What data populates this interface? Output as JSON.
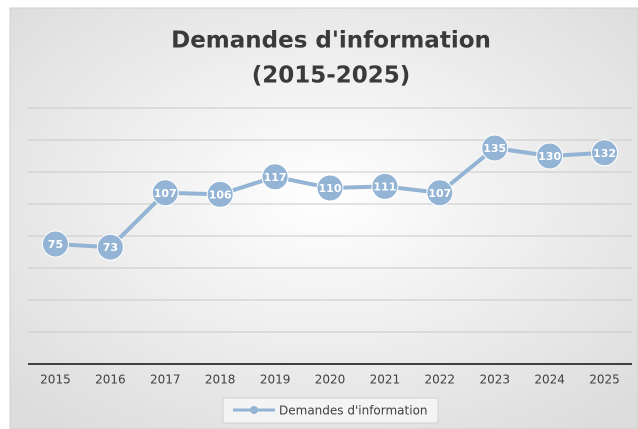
{
  "chart_data": {
    "type": "line",
    "title": [
      "Demandes d'information",
      "(2015-2025)"
    ],
    "categories": [
      "2015",
      "2016",
      "2017",
      "2018",
      "2019",
      "2020",
      "2021",
      "2022",
      "2023",
      "2024",
      "2025"
    ],
    "series": [
      {
        "name": "Demandes d'information",
        "color": "#93b4d4",
        "values": [
          75,
          73,
          107,
          106,
          117,
          110,
          111,
          107,
          135,
          130,
          132
        ]
      }
    ],
    "ylim": [
      0,
      160
    ],
    "yticks": [
      0,
      20,
      40,
      60,
      80,
      100,
      120,
      140,
      160
    ],
    "grid": true,
    "legend": "bottom"
  }
}
